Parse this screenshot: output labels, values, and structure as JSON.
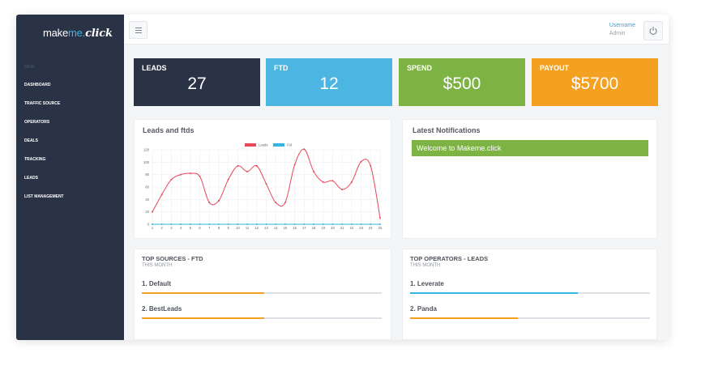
{
  "sidebar": {
    "logo": {
      "part1": "make",
      "part2": "me.",
      "part3": "click"
    },
    "section": "MAIN",
    "items": [
      {
        "label": "DASHBOARD"
      },
      {
        "label": "TRAFFIC SOURCE"
      },
      {
        "label": "OPERATORS"
      },
      {
        "label": "DEALS"
      },
      {
        "label": "TRACKING"
      },
      {
        "label": "LEADS"
      },
      {
        "label": "LIST MANAGEMENT"
      }
    ]
  },
  "header": {
    "username": "Username",
    "role": "Admin",
    "menu_icon": "hamburger-icon",
    "power_icon": "power-icon"
  },
  "stats": [
    {
      "label": "LEADS",
      "value": "27",
      "color": "#2a3346"
    },
    {
      "label": "FTD",
      "value": "12",
      "color": "#4db5e1"
    },
    {
      "label": "SPEND",
      "value": "$500",
      "color": "#7cb342"
    },
    {
      "label": "PAYOUT",
      "value": "$5700",
      "color": "#f4a021"
    }
  ],
  "chart_card": {
    "title": "Leads and ftds"
  },
  "chart_data": {
    "type": "line",
    "x": [
      1,
      2,
      3,
      4,
      5,
      6,
      7,
      8,
      9,
      10,
      11,
      12,
      13,
      14,
      15,
      16,
      17,
      18,
      19,
      20,
      21,
      22,
      23,
      24,
      25
    ],
    "ylim": [
      0,
      120
    ],
    "yticks": [
      0,
      20,
      40,
      60,
      80,
      100,
      120
    ],
    "series": [
      {
        "name": "Leads",
        "color": "#e8475a",
        "values": [
          20,
          48,
          72,
          80,
          82,
          77,
          35,
          38,
          72,
          94,
          85,
          94,
          65,
          35,
          35,
          96,
          121,
          85,
          68,
          70,
          56,
          68,
          101,
          94,
          10
        ]
      },
      {
        "name": "Ftd",
        "color": "#36b3e0",
        "values": [
          0,
          0,
          0,
          0,
          0,
          0,
          0,
          0,
          0,
          0,
          0,
          0,
          0,
          0,
          0,
          0,
          0,
          0,
          0,
          0,
          0,
          0,
          0,
          0,
          0
        ]
      }
    ]
  },
  "notifications": {
    "title": "Latest Notifications",
    "items": [
      "Welcome to Makeme.click"
    ]
  },
  "top_sources": {
    "title": "TOP SOURCES - FTD",
    "subtitle": "THIS MONTH",
    "items": [
      {
        "label": "1. Default",
        "progress": 0.51,
        "color": "#f4a021"
      },
      {
        "label": "2. BestLeads",
        "progress": 0.51,
        "color": "#f4a021"
      }
    ]
  },
  "top_operators": {
    "title": "TOP OPERATORS - LEADS",
    "subtitle": "THIS MONTH",
    "items": [
      {
        "label": "1. Leverate",
        "progress": 0.7,
        "color": "#36b3e0"
      },
      {
        "label": "2. Panda",
        "progress": 0.45,
        "color": "#f4a021"
      }
    ]
  }
}
